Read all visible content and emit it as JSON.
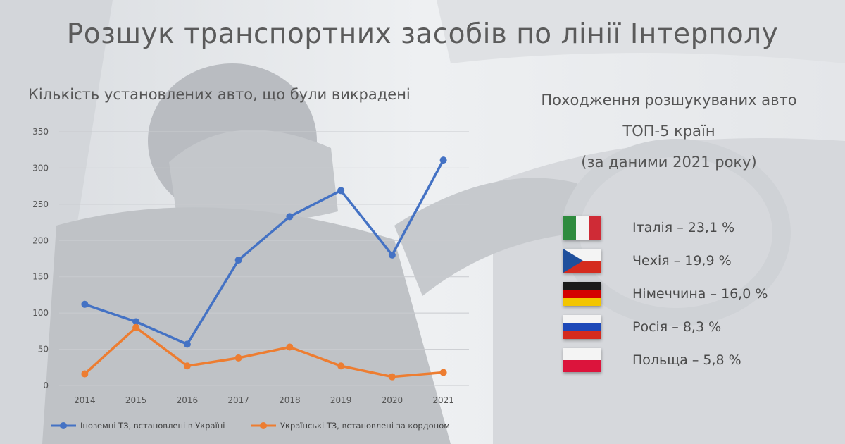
{
  "title": "Розшук транспортних засобів по лінії Інтерполу",
  "chart_title": "Кількість установлених авто, що були викрадені",
  "right_panel": {
    "title_lines": [
      "Походження розшукуваних авто",
      "ТОП-5 країн",
      "(за даними 2021 року)"
    ],
    "countries": [
      {
        "label": "Італія – 23,1 %",
        "flag": "italy-flag"
      },
      {
        "label": "Чехія – 19,9 %",
        "flag": "czechia-flag"
      },
      {
        "label": "Німеччина – 16,0 %",
        "flag": "germany-flag"
      },
      {
        "label": "Росія – 8,3 %",
        "flag": "russia-flag"
      },
      {
        "label": "Польща – 5,8 %",
        "flag": "poland-flag"
      }
    ]
  },
  "chart_data": {
    "type": "line",
    "x": [
      "2014",
      "2015",
      "2016",
      "2017",
      "2018",
      "2019",
      "2020",
      "2021"
    ],
    "ylim": [
      0,
      350
    ],
    "yticks": [
      0,
      50,
      100,
      150,
      200,
      250,
      300,
      350
    ],
    "grid": true,
    "legend_position": "bottom",
    "series": [
      {
        "name": "Іноземні ТЗ, встановлені в Україні",
        "color": "#4472c4",
        "values": [
          112,
          88,
          57,
          173,
          233,
          269,
          180,
          311
        ]
      },
      {
        "name": "Українські ТЗ, встановлені за кордоном",
        "color": "#ed7d31",
        "values": [
          16,
          80,
          27,
          38,
          53,
          27,
          12,
          18
        ]
      }
    ]
  }
}
